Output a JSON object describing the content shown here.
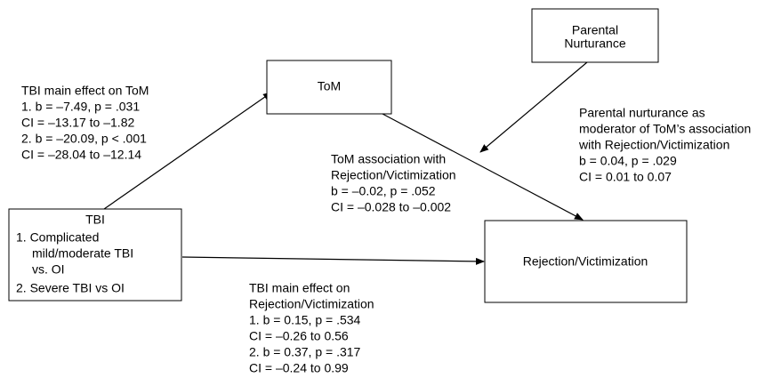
{
  "nodes": [
    {
      "label": [
        "ToM"
      ]
    },
    {
      "label": [
        "Parental",
        "Nurturance"
      ]
    },
    {
      "label": [
        "TBI"
      ],
      "items": [
        "1. Complicated",
        "mild/moderate TBI",
        "vs. OI",
        "2. Severe TBI vs OI"
      ]
    },
    {
      "label": [
        "Rejection/Victimization"
      ]
    }
  ],
  "annotations": [
    {
      "lines": [
        "TBI main effect on ToM",
        "1. b = –7.49, p = .031",
        "CI = –13.17 to –1.82",
        "2. b = –20.09, p < .001",
        "CI = –28.04 to –12.14"
      ]
    },
    {
      "lines": [
        "ToM association with",
        "Rejection/Victimization",
        "b = –0.02, p = .052",
        "CI = –0.028 to –0.002"
      ]
    },
    {
      "lines": [
        "Parental nurturance as",
        "moderator of ToM’s association",
        "with Rejection/Victimization",
        "b = 0.04, p = .029",
        "CI = 0.01 to 0.07"
      ]
    },
    {
      "lines": [
        "TBI main effect on",
        "Rejection/Victimization",
        "1. b = 0.15, p = .534",
        "CI = –0.26 to 0.56",
        "2. b = 0.37,  p = .317",
        "CI = –0.24 to 0.99"
      ]
    }
  ]
}
